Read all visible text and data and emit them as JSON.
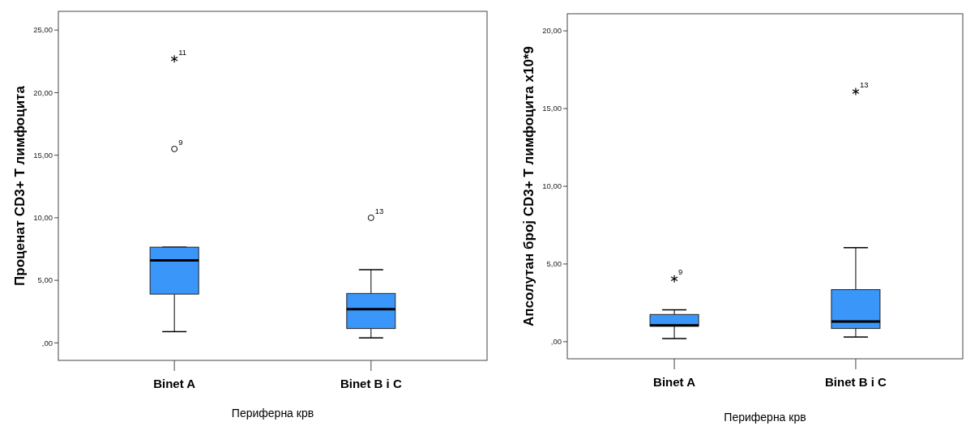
{
  "chart_data": [
    {
      "type": "box",
      "ylabel": "Проценат CD3+ T лимфоцита",
      "xlabel": "Периферна крв",
      "categories": [
        "Binet A",
        "Binet B i C"
      ],
      "series": [
        {
          "color": "#3a96f8",
          "boxes": [
            {
              "low": 0.9,
              "q1": 3.9,
              "median": 6.6,
              "q3": 7.65,
              "high": 7.65,
              "outliers": [
                15.5,
                22.7
              ]
            },
            {
              "low": 0.4,
              "q1": 1.15,
              "median": 2.7,
              "q3": 3.95,
              "high": 5.85,
              "outliers": [
                10.0
              ]
            }
          ]
        }
      ],
      "ylim": [
        -1.4,
        26.5
      ],
      "yticks": [
        {
          "value": 0,
          "label": ",00"
        },
        {
          "value": 5,
          "label": "5,00"
        },
        {
          "value": 10,
          "label": "10,00"
        },
        {
          "value": 15,
          "label": "15,00"
        },
        {
          "value": 20,
          "label": "20,00"
        },
        {
          "value": 25,
          "label": "25,00"
        }
      ],
      "annotations": [
        "9",
        "11",
        "13"
      ]
    },
    {
      "type": "box",
      "ylabel": "Апсолутан број CD3+ T лимфоцита x10*9",
      "xlabel": "Периферна крв",
      "categories": [
        "Binet A",
        "Binet B i C"
      ],
      "series": [
        {
          "color": "#3a96f8",
          "boxes": [
            {
              "low": 0.2,
              "q1": 1.0,
              "median": 1.05,
              "q3": 1.75,
              "high": 2.05,
              "outliers": [
                4.05
              ]
            },
            {
              "low": 0.3,
              "q1": 0.85,
              "median": 1.3,
              "q3": 3.35,
              "high": 6.05,
              "outliers": [
                16.1
              ]
            }
          ]
        }
      ],
      "ylim": [
        -1.1,
        21.1
      ],
      "yticks": [
        {
          "value": 0,
          "label": ",00"
        },
        {
          "value": 5,
          "label": "5,00"
        },
        {
          "value": 10,
          "label": "10,00"
        },
        {
          "value": 15,
          "label": "15,00"
        },
        {
          "value": 20,
          "label": "20,00"
        }
      ],
      "annotations": [
        "9",
        "13"
      ]
    }
  ]
}
